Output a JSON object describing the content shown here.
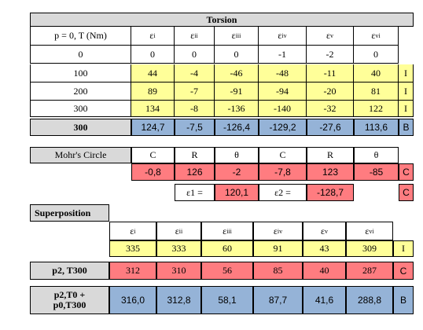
{
  "torsion": {
    "title": "Torsion",
    "row_header": "p = 0,  T (Nm)",
    "strain_headers": [
      "ε",
      "ε",
      "ε",
      "ε",
      "ε",
      "ε"
    ],
    "strain_subs": [
      "i",
      "ii",
      "iii",
      "iv",
      "v",
      "vi"
    ],
    "rows": [
      {
        "t": "0",
        "vals": [
          "0",
          "0",
          "0",
          "-1",
          "-2",
          "0"
        ]
      },
      {
        "t": "100",
        "vals": [
          "44",
          "-4",
          "-46",
          "-48",
          "-11",
          "40"
        ],
        "flag": "I"
      },
      {
        "t": "200",
        "vals": [
          "89",
          "-7",
          "-91",
          "-94",
          "-20",
          "81"
        ],
        "flag": "I"
      },
      {
        "t": "300",
        "vals": [
          "134",
          "-8",
          "-136",
          "-140",
          "-32",
          "122"
        ],
        "flag": "I"
      }
    ],
    "summary": {
      "label": "300",
      "vals": [
        "124,7",
        "-7,5",
        "-126,4",
        "-129,2",
        "-27,6",
        "113,6"
      ],
      "flag": "B"
    }
  },
  "mohr": {
    "label": "Mohr's Circle",
    "headers": [
      "C",
      "R",
      "θ",
      "C",
      "R",
      "θ"
    ],
    "vals": [
      "-0,8",
      "126",
      "-2",
      "-7,8",
      "123",
      "-85"
    ],
    "flag": "C",
    "e1_label": "ε1 =",
    "e1_val": "120,1",
    "e2_label": "ε2 =",
    "e2_val": "-128,7",
    "flag2": "C"
  },
  "superposition": {
    "title": "Superposition",
    "headers": [
      "ε",
      "ε",
      "ε",
      "ε",
      "ε",
      "ε"
    ],
    "subs": [
      "i",
      "ii",
      "iii",
      "iv",
      "v",
      "vi"
    ],
    "vals": [
      "335",
      "333",
      "60",
      "91",
      "43",
      "309"
    ],
    "flag": "I",
    "row1": {
      "label": "p2, T300",
      "vals": [
        "312",
        "310",
        "56",
        "85",
        "40",
        "287"
      ],
      "flag": "C"
    },
    "row2": {
      "label1": "p2,T0 +",
      "label2": "p0,T300",
      "vals": [
        "316,0",
        "312,8",
        "58,1",
        "87,7",
        "41,6",
        "288,8"
      ],
      "flag": "B"
    }
  }
}
